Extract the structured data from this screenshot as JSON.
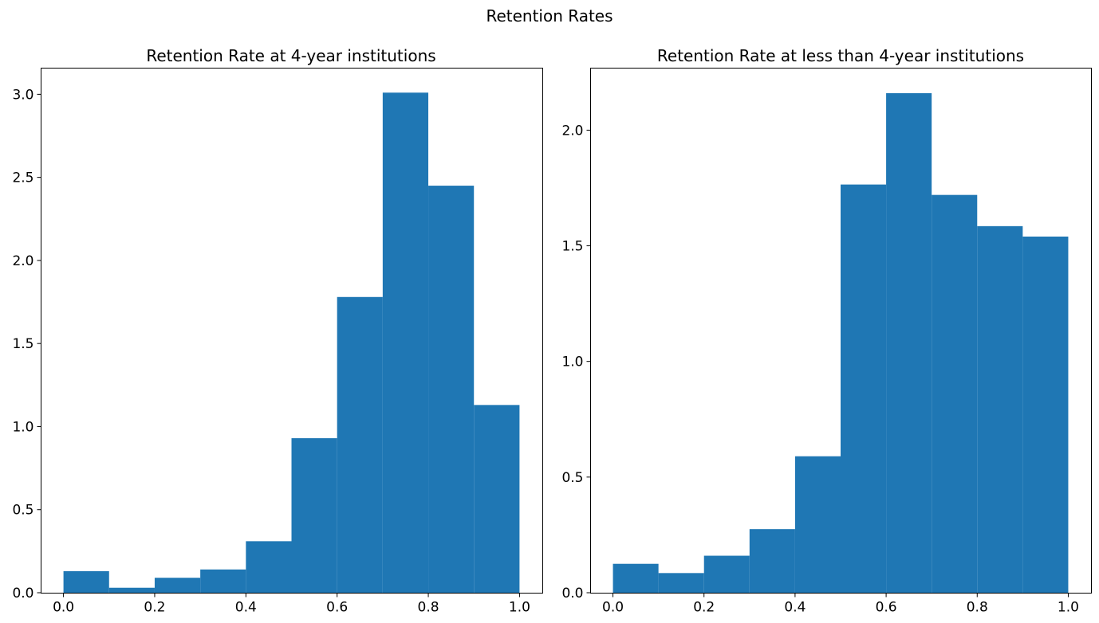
{
  "figure": {
    "suptitle": "Retention Rates"
  },
  "chart_data": [
    {
      "type": "bar",
      "subtype": "histogram",
      "title": "Retention Rate at 4-year institutions",
      "xlabel": "",
      "ylabel": "",
      "bin_edges": [
        0.0,
        0.1,
        0.2,
        0.3,
        0.4,
        0.5,
        0.6,
        0.7,
        0.8,
        0.9,
        1.0
      ],
      "values": [
        0.13,
        0.03,
        0.09,
        0.14,
        0.31,
        0.93,
        1.78,
        3.01,
        2.45,
        1.13
      ],
      "xlim": [
        -0.05,
        1.05
      ],
      "ylim": [
        0,
        3.16
      ],
      "xticks": [
        0.0,
        0.2,
        0.4,
        0.6,
        0.8,
        1.0
      ],
      "xtick_labels": [
        "0.0",
        "0.2",
        "0.4",
        "0.6",
        "0.8",
        "1.0"
      ],
      "yticks": [
        0.0,
        0.5,
        1.0,
        1.5,
        2.0,
        2.5,
        3.0
      ],
      "ytick_labels": [
        "0.0",
        "0.5",
        "1.0",
        "1.5",
        "2.0",
        "2.5",
        "3.0"
      ],
      "color": "#1f77b4",
      "grid": false
    },
    {
      "type": "bar",
      "subtype": "histogram",
      "title": "Retention Rate at less than 4-year institutions",
      "xlabel": "",
      "ylabel": "",
      "bin_edges": [
        0.0,
        0.1,
        0.2,
        0.3,
        0.4,
        0.5,
        0.6,
        0.7,
        0.8,
        0.9,
        1.0
      ],
      "values": [
        0.125,
        0.085,
        0.16,
        0.275,
        0.59,
        1.765,
        2.16,
        1.72,
        1.585,
        1.54
      ],
      "xlim": [
        -0.05,
        1.05
      ],
      "ylim": [
        0,
        2.27
      ],
      "xticks": [
        0.0,
        0.2,
        0.4,
        0.6,
        0.8,
        1.0
      ],
      "xtick_labels": [
        "0.0",
        "0.2",
        "0.4",
        "0.6",
        "0.8",
        "1.0"
      ],
      "yticks": [
        0.0,
        0.5,
        1.0,
        1.5,
        2.0
      ],
      "ytick_labels": [
        "0.0",
        "0.5",
        "1.0",
        "1.5",
        "2.0"
      ],
      "color": "#1f77b4",
      "grid": false
    }
  ]
}
